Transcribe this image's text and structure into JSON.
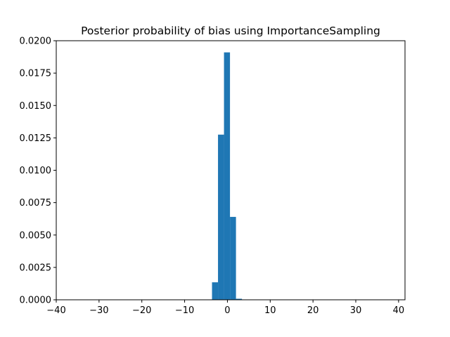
{
  "chart_data": {
    "type": "bar",
    "title": "Posterior probability of bias using ImportanceSampling",
    "xlabel": "",
    "ylabel": "",
    "xlim": [
      -40,
      41.5
    ],
    "ylim": [
      0,
      0.02
    ],
    "xticks": [
      -40,
      -30,
      -20,
      -10,
      0,
      10,
      20,
      30,
      40
    ],
    "xtick_labels": [
      "−40",
      "−30",
      "−20",
      "−10",
      "0",
      "10",
      "20",
      "30",
      "40"
    ],
    "yticks": [
      0,
      0.0025,
      0.005,
      0.0075,
      0.01,
      0.0125,
      0.015,
      0.0175,
      0.02
    ],
    "ytick_labels": [
      "0.0000",
      "0.0025",
      "0.0050",
      "0.0075",
      "0.0100",
      "0.0125",
      "0.0150",
      "0.0175",
      "0.0200"
    ],
    "bar_color": "#1f77b4",
    "grid": false,
    "bins": [
      {
        "x0": -3.6,
        "x1": -2.2,
        "value": 0.00135
      },
      {
        "x0": -2.2,
        "x1": -0.8,
        "value": 0.01275
      },
      {
        "x0": -0.8,
        "x1": 0.6,
        "value": 0.0191
      },
      {
        "x0": 0.6,
        "x1": 2.0,
        "value": 0.0064
      },
      {
        "x0": 2.0,
        "x1": 3.4,
        "value": 8e-05
      }
    ]
  }
}
